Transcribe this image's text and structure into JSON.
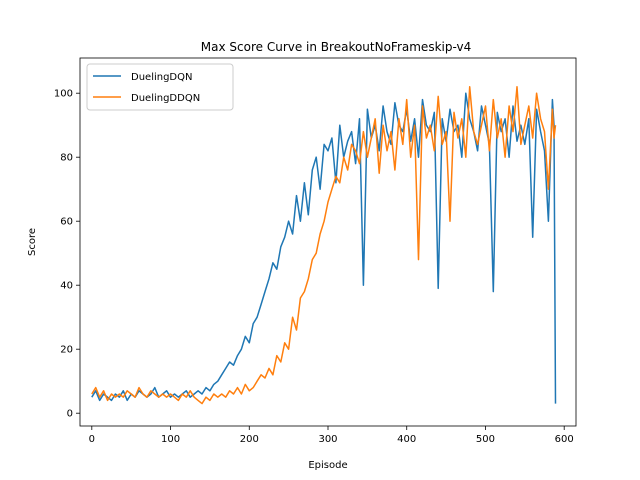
{
  "chart_data": {
    "type": "line",
    "title": "Max Score Curve in BreakoutNoFrameskip-v4",
    "xlabel": "Episode",
    "ylabel": "Score",
    "xlim": [
      -15,
      615
    ],
    "ylim": [
      -4,
      111
    ],
    "xticks": [
      0,
      100,
      200,
      300,
      400,
      500,
      600
    ],
    "yticks": [
      0,
      20,
      40,
      60,
      80,
      100
    ],
    "grid": false,
    "legend_position": "top-left",
    "series": [
      {
        "name": "DuelingDQN",
        "color": "#1f77b4",
        "x": [
          0,
          5,
          10,
          15,
          20,
          25,
          30,
          35,
          40,
          45,
          50,
          55,
          60,
          65,
          70,
          75,
          80,
          85,
          90,
          95,
          100,
          105,
          110,
          115,
          120,
          125,
          130,
          135,
          140,
          145,
          150,
          155,
          160,
          165,
          170,
          175,
          180,
          185,
          190,
          195,
          200,
          205,
          210,
          215,
          220,
          225,
          230,
          235,
          240,
          245,
          250,
          255,
          260,
          265,
          270,
          275,
          280,
          285,
          290,
          295,
          300,
          305,
          310,
          315,
          320,
          325,
          330,
          335,
          340,
          345,
          350,
          355,
          360,
          365,
          370,
          375,
          380,
          385,
          390,
          395,
          400,
          405,
          410,
          415,
          420,
          425,
          430,
          435,
          440,
          445,
          450,
          455,
          460,
          465,
          470,
          475,
          480,
          485,
          490,
          495,
          500,
          505,
          510,
          515,
          520,
          525,
          530,
          535,
          540,
          545,
          550,
          555,
          560,
          565,
          570,
          575,
          580,
          585,
          587,
          589
        ],
        "y": [
          5,
          7,
          4,
          6,
          5,
          4,
          6,
          5,
          7,
          4,
          6,
          5,
          7,
          6,
          5,
          6,
          8,
          5,
          6,
          7,
          5,
          6,
          5,
          6,
          7,
          5,
          6,
          7,
          6,
          8,
          7,
          9,
          10,
          12,
          14,
          16,
          15,
          18,
          20,
          24,
          22,
          28,
          30,
          34,
          38,
          42,
          47,
          45,
          52,
          55,
          60,
          56,
          68,
          60,
          72,
          62,
          76,
          80,
          70,
          84,
          82,
          86,
          72,
          90,
          80,
          85,
          88,
          78,
          92,
          40,
          95,
          86,
          90,
          82,
          96,
          88,
          84,
          97,
          90,
          88,
          95,
          85,
          92,
          80,
          98,
          90,
          88,
          94,
          39,
          92,
          85,
          95,
          88,
          90,
          80,
          100,
          92,
          88,
          82,
          96,
          90,
          84,
          38,
          94,
          88,
          92,
          80,
          96,
          85,
          90,
          84,
          92,
          55,
          95,
          88,
          82,
          60,
          98,
          90,
          3
        ]
      },
      {
        "name": "DuelingDDQN",
        "color": "#ff7f0e",
        "x": [
          0,
          5,
          10,
          15,
          20,
          25,
          30,
          35,
          40,
          45,
          50,
          55,
          60,
          65,
          70,
          75,
          80,
          85,
          90,
          95,
          100,
          105,
          110,
          115,
          120,
          125,
          130,
          135,
          140,
          145,
          150,
          155,
          160,
          165,
          170,
          175,
          180,
          185,
          190,
          195,
          200,
          205,
          210,
          215,
          220,
          225,
          230,
          235,
          240,
          245,
          250,
          255,
          260,
          265,
          270,
          275,
          280,
          285,
          290,
          295,
          300,
          305,
          310,
          315,
          320,
          325,
          330,
          335,
          340,
          345,
          350,
          355,
          360,
          365,
          370,
          375,
          380,
          385,
          390,
          395,
          400,
          405,
          410,
          415,
          420,
          425,
          430,
          435,
          440,
          445,
          450,
          455,
          460,
          465,
          470,
          475,
          480,
          485,
          490,
          495,
          500,
          505,
          510,
          515,
          520,
          525,
          530,
          535,
          540,
          545,
          550,
          555,
          560,
          565,
          570,
          575,
          580,
          585,
          587,
          589
        ],
        "y": [
          6,
          8,
          5,
          7,
          4,
          6,
          5,
          6,
          5,
          7,
          6,
          5,
          8,
          6,
          5,
          7,
          6,
          5,
          6,
          5,
          6,
          5,
          4,
          6,
          5,
          7,
          5,
          4,
          3,
          5,
          4,
          6,
          5,
          6,
          5,
          7,
          6,
          8,
          6,
          9,
          7,
          8,
          10,
          12,
          11,
          14,
          12,
          18,
          16,
          22,
          20,
          30,
          26,
          36,
          38,
          42,
          48,
          50,
          56,
          60,
          66,
          70,
          74,
          72,
          80,
          76,
          84,
          82,
          78,
          88,
          80,
          86,
          92,
          75,
          90,
          82,
          88,
          76,
          92,
          84,
          98,
          80,
          90,
          48,
          96,
          86,
          90,
          82,
          99,
          84,
          88,
          60,
          94,
          86,
          92,
          80,
          102,
          88,
          84,
          90,
          96,
          82,
          98,
          86,
          92,
          80,
          96,
          88,
          102,
          84,
          90,
          96,
          86,
          100,
          92,
          88,
          70,
          95,
          86,
          90
        ]
      }
    ]
  }
}
